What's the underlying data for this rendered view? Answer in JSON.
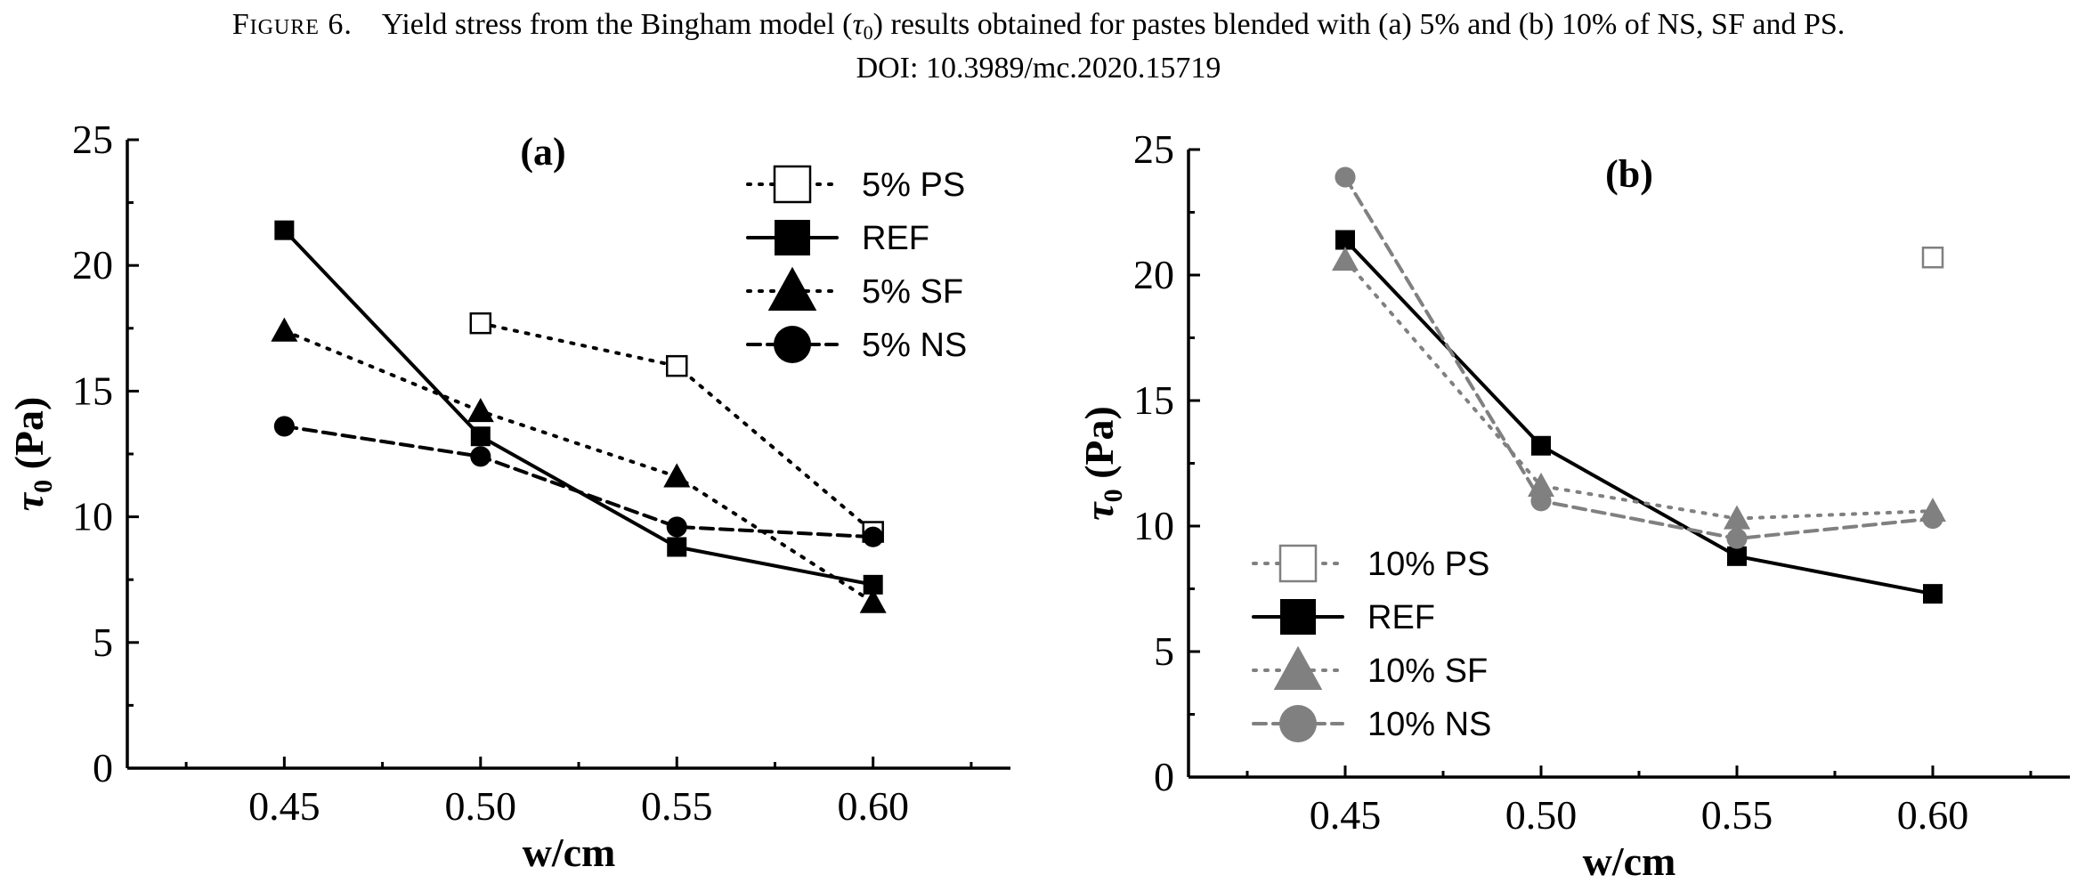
{
  "caption": {
    "figure_label": "Figure 6.",
    "text_before": "Yield stress from the Bingham model (",
    "tau_symbol": "τ",
    "tau_subscript": "0",
    "text_after": ") results obtained for pastes blended with (a) 5% and (b) 10% of NS, SF and PS.",
    "doi": "DOI: 10.3989/mc.2020.15719"
  },
  "chart_data": [
    {
      "type": "line",
      "panel_label": "(a)",
      "xlabel": "w/cm",
      "ylabel_symbol": "τ",
      "ylabel_subscript": "0",
      "ylabel_unit": "(Pa)",
      "xlim": [
        0.41,
        0.635
      ],
      "ylim": [
        0,
        25
      ],
      "x_ticks": [
        "0.45",
        "0.50",
        "0.55",
        "0.60"
      ],
      "y_ticks": [
        "0",
        "5",
        "10",
        "15",
        "20",
        "25"
      ],
      "grid": false,
      "legend_position": "top-right",
      "series": [
        {
          "name": "5% PS",
          "color": "#000000",
          "line_style": "dotted",
          "marker": "open-square",
          "x": [
            0.5,
            0.55,
            0.6
          ],
          "values": [
            17.7,
            16.0,
            9.4
          ]
        },
        {
          "name": "REF",
          "color": "#000000",
          "line_style": "solid",
          "marker": "filled-square",
          "x": [
            0.45,
            0.5,
            0.55,
            0.6
          ],
          "values": [
            21.4,
            13.2,
            8.8,
            7.3
          ]
        },
        {
          "name": "5% SF",
          "color": "#000000",
          "line_style": "dotted",
          "marker": "filled-triangle",
          "x": [
            0.45,
            0.5,
            0.55,
            0.6
          ],
          "values": [
            17.4,
            14.2,
            11.6,
            6.6
          ]
        },
        {
          "name": "5% NS",
          "color": "#000000",
          "line_style": "dashed",
          "marker": "filled-circle",
          "x": [
            0.45,
            0.5,
            0.55,
            0.6
          ],
          "values": [
            13.6,
            12.4,
            9.6,
            9.2
          ]
        }
      ]
    },
    {
      "type": "line",
      "panel_label": "(b)",
      "xlabel": "w/cm",
      "ylabel_symbol": "τ",
      "ylabel_subscript": "0",
      "ylabel_unit": "(Pa)",
      "xlim": [
        0.41,
        0.635
      ],
      "ylim": [
        0,
        25
      ],
      "x_ticks": [
        "0.45",
        "0.50",
        "0.55",
        "0.60"
      ],
      "y_ticks": [
        "0",
        "5",
        "10",
        "15",
        "20",
        "25"
      ],
      "grid": false,
      "legend_position": "bottom-left",
      "series": [
        {
          "name": "10% PS",
          "color": "#808080",
          "line_style": "dotted",
          "marker": "open-square",
          "x": [
            0.6
          ],
          "values": [
            20.7
          ]
        },
        {
          "name": "REF",
          "color": "#000000",
          "line_style": "solid",
          "marker": "filled-square",
          "x": [
            0.45,
            0.5,
            0.55,
            0.6
          ],
          "values": [
            21.4,
            13.2,
            8.8,
            7.3
          ]
        },
        {
          "name": "10% SF",
          "color": "#808080",
          "line_style": "dotted",
          "marker": "filled-triangle",
          "x": [
            0.45,
            0.5,
            0.55,
            0.6
          ],
          "values": [
            20.6,
            11.6,
            10.3,
            10.6
          ]
        },
        {
          "name": "10% NS",
          "color": "#808080",
          "line_style": "dashed",
          "marker": "filled-circle",
          "x": [
            0.45,
            0.5,
            0.55,
            0.6
          ],
          "values": [
            23.9,
            11.0,
            9.5,
            10.3
          ]
        }
      ]
    }
  ]
}
